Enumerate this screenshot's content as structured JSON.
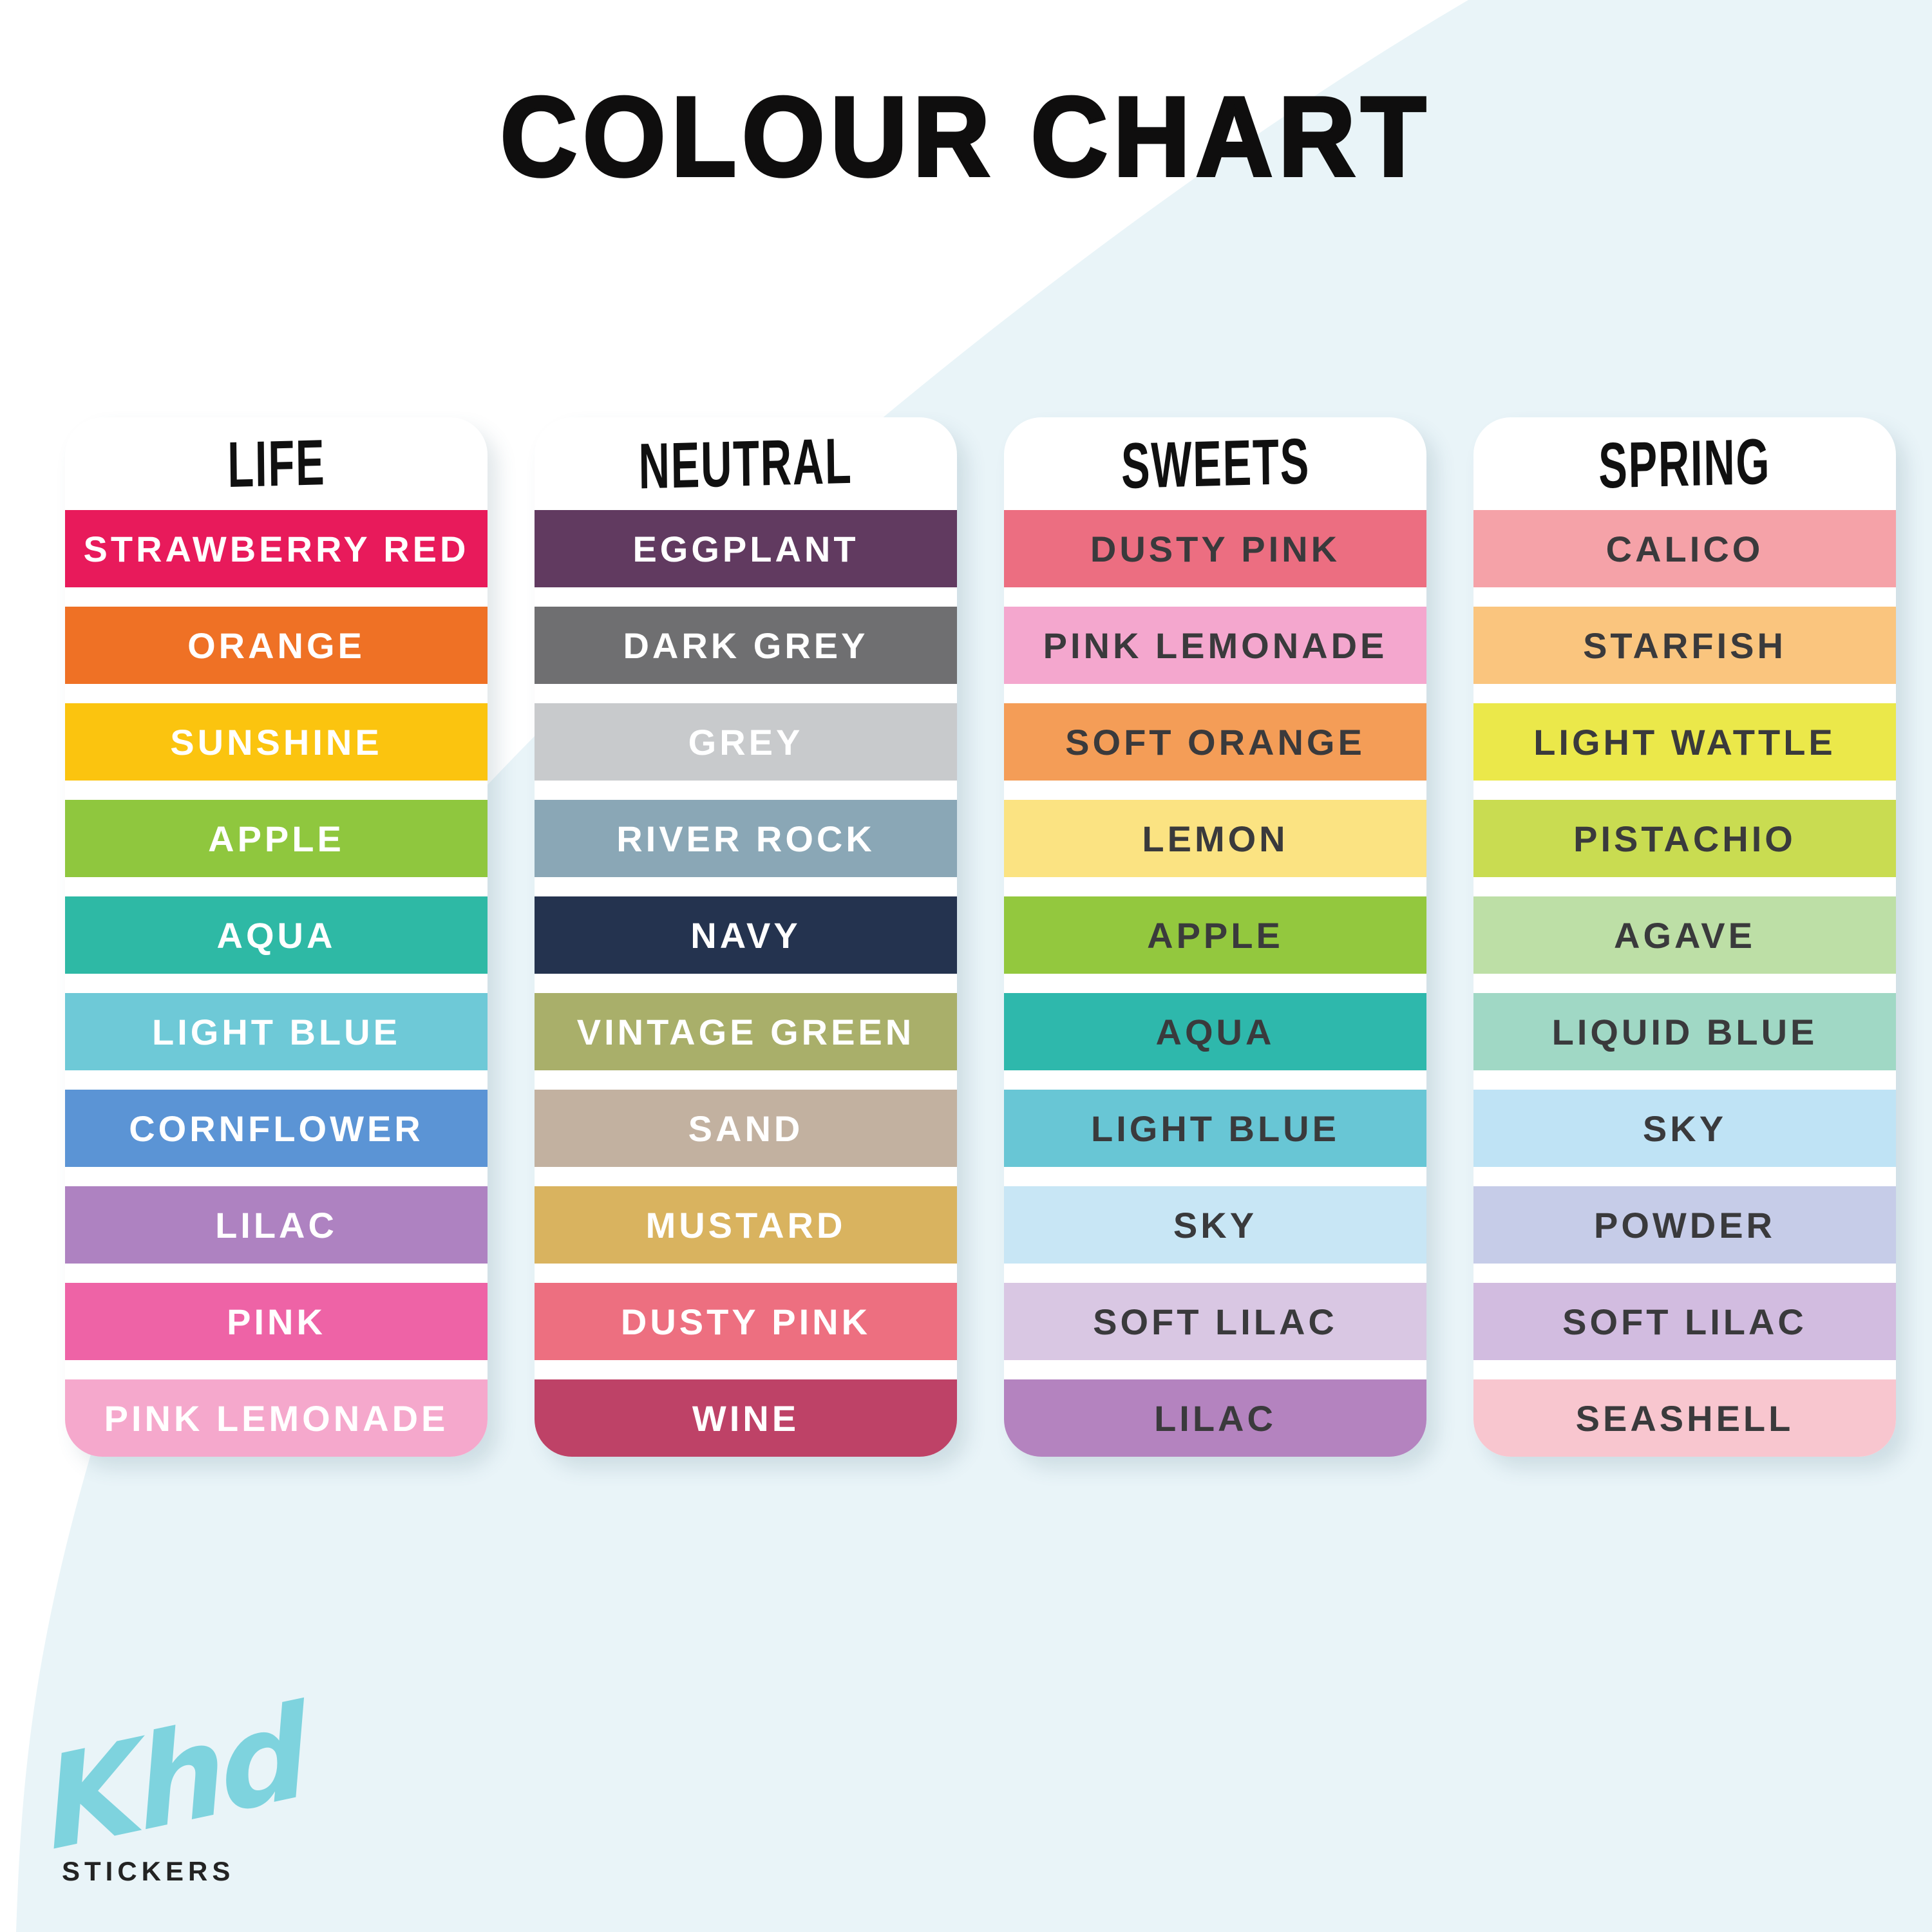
{
  "title": "COLOUR CHART",
  "background": {
    "page_color": "#ffffff",
    "blob_color": "#e9f4f8"
  },
  "brand": {
    "script": "Khd",
    "script_color": "#7ed3de",
    "sub": "STICKERS",
    "sub_color": "#232323"
  },
  "chart_data": {
    "type": "table",
    "title": "COLOUR CHART",
    "legend_position": "none",
    "columns": [
      {
        "name": "LIFE",
        "text_color": "#ffffff",
        "swatches": [
          {
            "label": "STRAWBERRY RED",
            "color": "#e81a5b"
          },
          {
            "label": "ORANGE",
            "color": "#ef7125"
          },
          {
            "label": "SUNSHINE",
            "color": "#fbc40f"
          },
          {
            "label": "APPLE",
            "color": "#8fc73e"
          },
          {
            "label": "AQUA",
            "color": "#2eb9a5"
          },
          {
            "label": "LIGHT BLUE",
            "color": "#6ec9d7"
          },
          {
            "label": "CORNFLOWER",
            "color": "#5b94d5"
          },
          {
            "label": "LILAC",
            "color": "#ae82c1"
          },
          {
            "label": "PINK",
            "color": "#ee63a6"
          },
          {
            "label": "PINK LEMONADE",
            "color": "#f5a8cc"
          }
        ]
      },
      {
        "name": "NEUTRAL",
        "text_color": "#ffffff",
        "swatches": [
          {
            "label": "EGGPLANT",
            "color": "#613a60"
          },
          {
            "label": "DARK GREY",
            "color": "#6f6f71"
          },
          {
            "label": "GREY",
            "color": "#c8cacc"
          },
          {
            "label": "RIVER ROCK",
            "color": "#8aa7b6"
          },
          {
            "label": "NAVY",
            "color": "#24334f"
          },
          {
            "label": "VINTAGE GREEN",
            "color": "#a9af6a"
          },
          {
            "label": "SAND",
            "color": "#c2b1a0"
          },
          {
            "label": "MUSTARD",
            "color": "#d9b35f"
          },
          {
            "label": "DUSTY PINK",
            "color": "#ed6f80"
          },
          {
            "label": "WINE",
            "color": "#be4267"
          }
        ]
      },
      {
        "name": "SWEETS",
        "text_color": "#3a3a3c",
        "swatches": [
          {
            "label": "DUSTY PINK",
            "color": "#ec6e81"
          },
          {
            "label": "PINK LEMONADE",
            "color": "#f4a7ce"
          },
          {
            "label": "SOFT ORANGE",
            "color": "#f49d57"
          },
          {
            "label": "LEMON",
            "color": "#fbe382"
          },
          {
            "label": "APPLE",
            "color": "#93c83e"
          },
          {
            "label": "AQUA",
            "color": "#2eb8ac"
          },
          {
            "label": "LIGHT BLUE",
            "color": "#68c6d5"
          },
          {
            "label": "SKY",
            "color": "#c8e6f5"
          },
          {
            "label": "SOFT LILAC",
            "color": "#d9c7e3"
          },
          {
            "label": "LILAC",
            "color": "#b483bf"
          }
        ]
      },
      {
        "name": "SPRING",
        "text_color": "#3a3a3c",
        "swatches": [
          {
            "label": "CALICO",
            "color": "#f5a2a8"
          },
          {
            "label": "STARFISH",
            "color": "#fac57e"
          },
          {
            "label": "LIGHT WATTLE",
            "color": "#ebe84a"
          },
          {
            "label": "PISTACHIO",
            "color": "#c9dc51"
          },
          {
            "label": "AGAVE",
            "color": "#bddfa6"
          },
          {
            "label": "LIQUID BLUE",
            "color": "#a0d8c5"
          },
          {
            "label": "SKY",
            "color": "#bfe3f5"
          },
          {
            "label": "POWDER",
            "color": "#c6cce8"
          },
          {
            "label": "SOFT LILAC",
            "color": "#d2bce0"
          },
          {
            "label": "SEASHELL",
            "color": "#f8c6cf"
          }
        ]
      }
    ]
  }
}
